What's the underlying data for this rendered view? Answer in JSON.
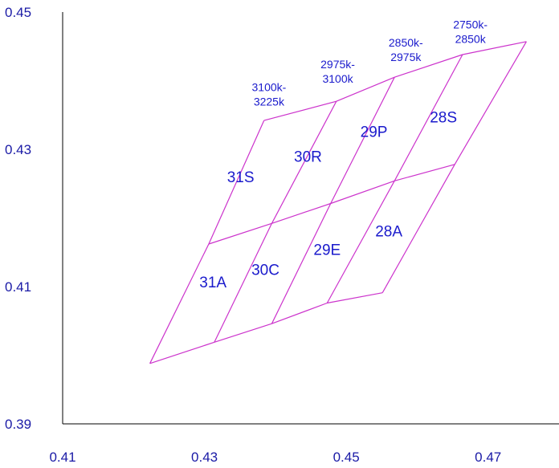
{
  "chart_data": {
    "type": "line",
    "title": "",
    "xlabel": "",
    "ylabel": "",
    "xlim": [
      0.41,
      0.48
    ],
    "ylim": [
      0.39,
      0.45
    ],
    "x_ticks": [
      "0.41",
      "0.43",
      "0.45",
      "0.47"
    ],
    "y_ticks": [
      "0.39",
      "0.41",
      "0.43",
      "0.45"
    ],
    "x_tick_values": [
      0.41,
      0.43,
      0.45,
      0.47
    ],
    "y_tick_values": [
      0.39,
      0.41,
      0.43,
      0.45
    ],
    "grid": false,
    "line_color": "#cc33cc",
    "text_color": "#1a1acc",
    "series": [
      {
        "points": [
          [
            0.4223,
            0.3988
          ],
          [
            0.4314,
            0.4019
          ],
          [
            0.4395,
            0.4046
          ],
          [
            0.4473,
            0.4076
          ],
          [
            0.4551,
            0.4091
          ]
        ]
      },
      {
        "points": [
          [
            0.4306,
            0.4162
          ],
          [
            0.4395,
            0.4192
          ],
          [
            0.4478,
            0.4221
          ],
          [
            0.4568,
            0.4254
          ],
          [
            0.4653,
            0.4278
          ]
        ]
      },
      {
        "points": [
          [
            0.4384,
            0.4342
          ],
          [
            0.4486,
            0.437
          ],
          [
            0.4568,
            0.4405
          ],
          [
            0.4664,
            0.4438
          ],
          [
            0.4754,
            0.4457
          ]
        ]
      },
      {
        "points": [
          [
            0.4223,
            0.3988
          ],
          [
            0.4306,
            0.4162
          ],
          [
            0.4384,
            0.4342
          ]
        ]
      },
      {
        "points": [
          [
            0.4314,
            0.4019
          ],
          [
            0.4395,
            0.4192
          ],
          [
            0.4486,
            0.437
          ]
        ]
      },
      {
        "points": [
          [
            0.4395,
            0.4046
          ],
          [
            0.4478,
            0.4221
          ],
          [
            0.4568,
            0.4405
          ]
        ]
      },
      {
        "points": [
          [
            0.4473,
            0.4076
          ],
          [
            0.4568,
            0.4254
          ],
          [
            0.4664,
            0.4438
          ]
        ]
      },
      {
        "points": [
          [
            0.4551,
            0.4091
          ],
          [
            0.4653,
            0.4278
          ],
          [
            0.4754,
            0.4457
          ]
        ]
      }
    ],
    "bin_labels": [
      {
        "text": "31S",
        "x": 0.4351,
        "y": 0.4252
      },
      {
        "text": "30R",
        "x": 0.4446,
        "y": 0.4282
      },
      {
        "text": "29P",
        "x": 0.4539,
        "y": 0.4318
      },
      {
        "text": "28S",
        "x": 0.4637,
        "y": 0.4339
      },
      {
        "text": "31A",
        "x": 0.4312,
        "y": 0.4099
      },
      {
        "text": "30C",
        "x": 0.4386,
        "y": 0.4117
      },
      {
        "text": "29E",
        "x": 0.4473,
        "y": 0.4146
      },
      {
        "text": "28A",
        "x": 0.456,
        "y": 0.4173
      }
    ],
    "cct_labels": [
      {
        "lines": [
          "3100k-",
          "3225k"
        ],
        "x": 0.4391,
        "y": 0.4385
      },
      {
        "lines": [
          "2975k-",
          "3100k"
        ],
        "x": 0.4488,
        "y": 0.4418
      },
      {
        "lines": [
          "2850k-",
          "2975k"
        ],
        "x": 0.4584,
        "y": 0.445
      },
      {
        "lines": [
          "2750k-",
          "2850k"
        ],
        "x": 0.4675,
        "y": 0.4476
      }
    ]
  }
}
